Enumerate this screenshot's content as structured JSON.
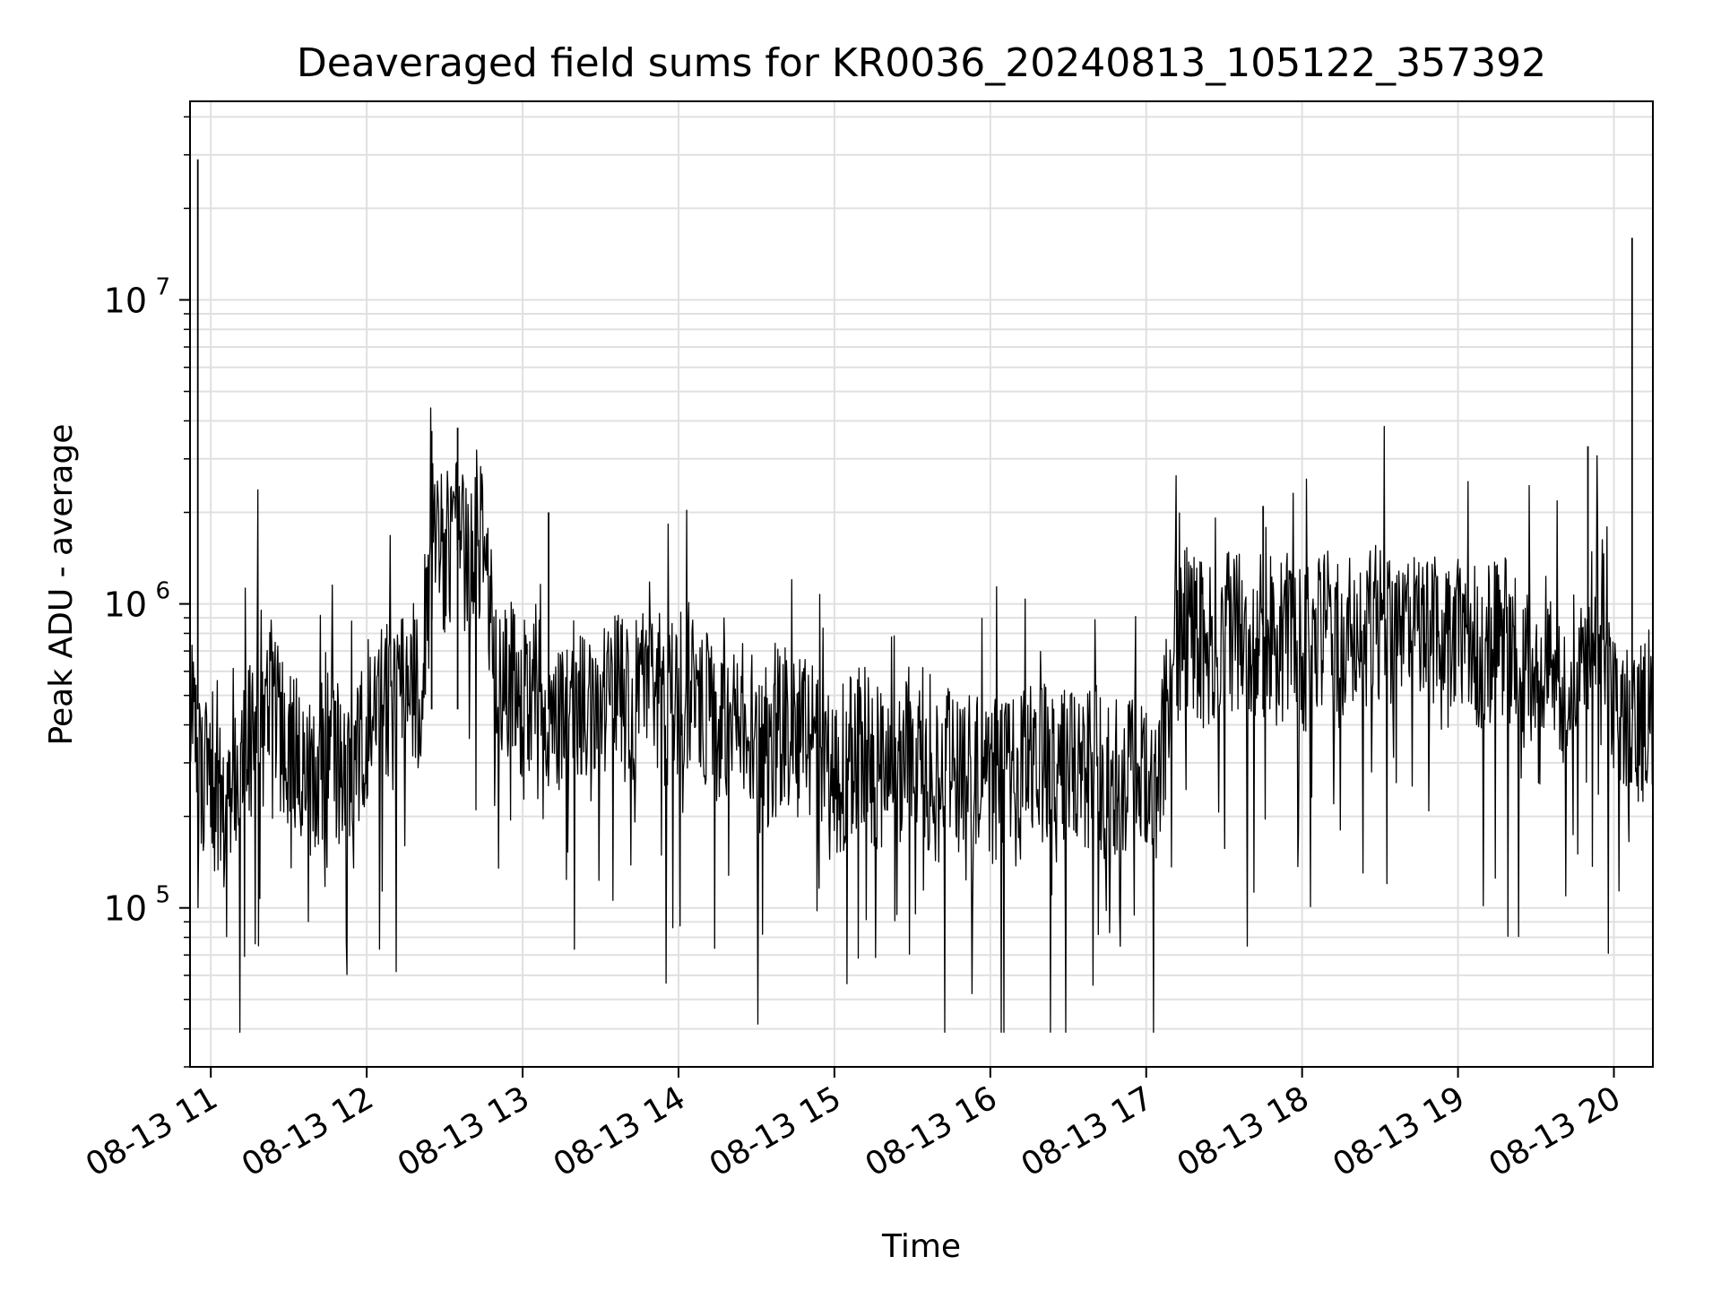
{
  "chart_data": {
    "type": "line",
    "title": "Deaveraged field sums for KR0036_20240813_105122_357392",
    "xlabel": "Time",
    "ylabel": "Peak ADU - average",
    "yscale": "log",
    "ylim": [
      30000,
      45000000
    ],
    "xlim": [
      "08-13 10:52",
      "08-13 20:15"
    ],
    "grid": true,
    "x_ticks": [
      "08-13 11",
      "08-13 12",
      "08-13 13",
      "08-13 14",
      "08-13 15",
      "08-13 16",
      "08-13 17",
      "08-13 18",
      "08-13 19",
      "08-13 20"
    ],
    "y_ticks": [
      {
        "value": 100000,
        "base": "10",
        "exp": "5"
      },
      {
        "value": 1000000,
        "base": "10",
        "exp": "6"
      },
      {
        "value": 10000000,
        "base": "10",
        "exp": "7"
      }
    ],
    "line_color": "#000000",
    "grid_color": "#e0e0e0",
    "series": [
      {
        "x": [
          "08-13 10:52",
          "08-13 10:55",
          "08-13 11:00",
          "08-13 11:05",
          "08-13 11:10",
          "08-13 11:15",
          "08-13 11:20",
          "08-13 11:25",
          "08-13 11:30",
          "08-13 11:35",
          "08-13 11:40",
          "08-13 11:45",
          "08-13 11:50",
          "08-13 11:55",
          "08-13 12:00",
          "08-13 12:05",
          "08-13 12:10",
          "08-13 12:15",
          "08-13 12:20",
          "08-13 12:25",
          "08-13 12:30",
          "08-13 12:35",
          "08-13 12:40",
          "08-13 12:45",
          "08-13 12:50",
          "08-13 12:55",
          "08-13 13:00",
          "08-13 13:05",
          "08-13 13:10",
          "08-13 13:15",
          "08-13 13:20",
          "08-13 13:25",
          "08-13 13:30",
          "08-13 13:35",
          "08-13 13:40",
          "08-13 13:45",
          "08-13 13:50",
          "08-13 13:55",
          "08-13 14:00",
          "08-13 14:05",
          "08-13 14:10",
          "08-13 14:15",
          "08-13 14:20",
          "08-13 14:25",
          "08-13 14:30",
          "08-13 14:35",
          "08-13 14:40",
          "08-13 14:45",
          "08-13 14:50",
          "08-13 14:55",
          "08-13 15:00",
          "08-13 15:05",
          "08-13 15:10",
          "08-13 15:15",
          "08-13 15:20",
          "08-13 15:25",
          "08-13 15:30",
          "08-13 15:35",
          "08-13 15:40",
          "08-13 15:45",
          "08-13 15:50",
          "08-13 15:55",
          "08-13 16:00",
          "08-13 16:05",
          "08-13 16:10",
          "08-13 16:15",
          "08-13 16:20",
          "08-13 16:25",
          "08-13 16:30",
          "08-13 16:35",
          "08-13 16:40",
          "08-13 16:45",
          "08-13 16:50",
          "08-13 16:55",
          "08-13 17:00",
          "08-13 17:05",
          "08-13 17:10",
          "08-13 17:15",
          "08-13 17:20",
          "08-13 17:25",
          "08-13 17:30",
          "08-13 17:35",
          "08-13 17:40",
          "08-13 17:45",
          "08-13 17:50",
          "08-13 17:55",
          "08-13 18:00",
          "08-13 18:05",
          "08-13 18:10",
          "08-13 18:15",
          "08-13 18:20",
          "08-13 18:25",
          "08-13 18:30",
          "08-13 18:35",
          "08-13 18:40",
          "08-13 18:45",
          "08-13 18:50",
          "08-13 18:55",
          "08-13 19:00",
          "08-13 19:05",
          "08-13 19:10",
          "08-13 19:15",
          "08-13 19:20",
          "08-13 19:25",
          "08-13 19:30",
          "08-13 19:35",
          "08-13 19:40",
          "08-13 19:45",
          "08-13 19:50",
          "08-13 19:55",
          "08-13 20:00",
          "08-13 20:05",
          "08-13 20:10",
          "08-13 20:15"
        ],
        "y": [
          600000,
          300000,
          250000,
          200000,
          300000,
          350000,
          650000,
          400000,
          350000,
          300000,
          250000,
          350000,
          300000,
          250000,
          400000,
          500000,
          450000,
          600000,
          500000,
          1400000,
          1500000,
          1800000,
          1300000,
          1600000,
          500000,
          600000,
          500000,
          550000,
          450000,
          400000,
          500000,
          400000,
          450000,
          550000,
          450000,
          500000,
          550000,
          450000,
          500000,
          550000,
          450000,
          400000,
          350000,
          400000,
          300000,
          350000,
          400000,
          350000,
          350000,
          300000,
          250000,
          300000,
          350000,
          300000,
          250000,
          300000,
          350000,
          300000,
          250000,
          300000,
          250000,
          300000,
          250000,
          300000,
          250000,
          300000,
          300000,
          250000,
          300000,
          250000,
          300000,
          250000,
          250000,
          300000,
          250000,
          250000,
          700000,
          800000,
          750000,
          700000,
          800000,
          850000,
          700000,
          800000,
          750000,
          800000,
          700000,
          750000,
          800000,
          700000,
          750000,
          800000,
          850000,
          700000,
          800000,
          750000,
          800000,
          700000,
          750000,
          800000,
          700000,
          850000,
          750000,
          600000,
          700000,
          650000,
          550000,
          600000,
          800000,
          1000000,
          400000,
          450000,
          400000,
          500000
        ]
      }
    ],
    "spikes": [
      {
        "x": "08-13 10:55",
        "y": 29000000
      },
      {
        "x": "08-13 12:25",
        "y": 3700000
      },
      {
        "x": "08-13 12:35",
        "y": 3800000
      },
      {
        "x": "08-13 13:10",
        "y": 2000000
      },
      {
        "x": "08-13 17:45",
        "y": 2100000
      },
      {
        "x": "08-13 19:50",
        "y": 3300000
      },
      {
        "x": "08-13 20:07",
        "y": 16000000
      }
    ]
  }
}
